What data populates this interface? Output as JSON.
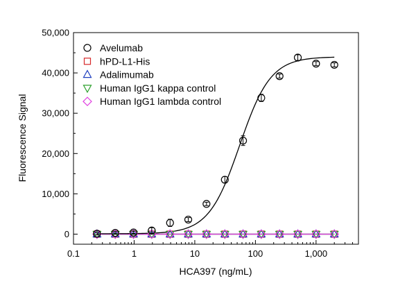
{
  "chart_data": {
    "type": "scatter",
    "title": "",
    "xlabel": "HCA397 (ng/mL)",
    "ylabel": "Fluorescence Signal",
    "x_scale": "log",
    "xlim": [
      0.1,
      5000
    ],
    "ylim": [
      -2500,
      50000
    ],
    "x_ticks": [
      0.1,
      1,
      10,
      100,
      1000
    ],
    "x_tick_labels": [
      "0.1",
      "1",
      "10",
      "100",
      "1,000"
    ],
    "y_ticks": [
      0,
      10000,
      20000,
      30000,
      40000,
      50000
    ],
    "y_tick_labels": [
      "0",
      "10,000",
      "20,000",
      "30,000",
      "40,000",
      "50,000"
    ],
    "grid": false,
    "legend_position": "top-left",
    "series": [
      {
        "name": "Avelumab",
        "marker": "circle",
        "color": "#000000",
        "x": [
          0.244,
          0.488,
          0.977,
          1.95,
          3.91,
          7.81,
          15.6,
          31.3,
          62.5,
          125,
          250,
          500,
          1000,
          2000
        ],
        "y": [
          100,
          300,
          400,
          900,
          2800,
          3600,
          7500,
          13500,
          23200,
          33800,
          39200,
          43800,
          42300,
          42000
        ],
        "err": [
          300,
          300,
          400,
          700,
          900,
          500,
          400,
          800,
          1200,
          900,
          500,
          700,
          500,
          500
        ],
        "fit": "4PL",
        "fit_params": {
          "bottom": 100,
          "top": 44000,
          "ec50": 55,
          "hill": 1.7
        }
      },
      {
        "name": "hPD-L1-His",
        "marker": "square",
        "color": "#d62728",
        "x": [
          0.244,
          0.488,
          0.977,
          1.95,
          3.91,
          7.81,
          15.6,
          31.3,
          62.5,
          125,
          250,
          500,
          1000,
          2000
        ],
        "y": [
          0,
          0,
          0,
          0,
          0,
          0,
          0,
          0,
          0,
          0,
          0,
          0,
          0,
          0
        ]
      },
      {
        "name": "Adalimumab",
        "marker": "triangle-up",
        "color": "#1f3fbf",
        "x": [
          0.244,
          0.488,
          0.977,
          1.95,
          3.91,
          7.81,
          15.6,
          31.3,
          62.5,
          125,
          250,
          500,
          1000,
          2000
        ],
        "y": [
          0,
          0,
          0,
          0,
          0,
          0,
          0,
          0,
          0,
          0,
          0,
          0,
          0,
          0
        ]
      },
      {
        "name": "Human IgG1 kappa control",
        "marker": "triangle-down",
        "color": "#2ca02c",
        "x": [
          0.244,
          0.488,
          0.977,
          1.95,
          3.91,
          7.81,
          15.6,
          31.3,
          62.5,
          125,
          250,
          500,
          1000,
          2000
        ],
        "y": [
          0,
          0,
          0,
          0,
          0,
          0,
          0,
          0,
          0,
          0,
          0,
          0,
          0,
          0
        ]
      },
      {
        "name": "Human IgG1 lambda control",
        "marker": "diamond",
        "color": "#e040e0",
        "x": [
          0.244,
          0.488,
          0.977,
          1.95,
          3.91,
          7.81,
          15.6,
          31.3,
          62.5,
          125,
          250,
          500,
          1000,
          2000
        ],
        "y": [
          0,
          0,
          0,
          0,
          0,
          0,
          0,
          0,
          0,
          0,
          0,
          0,
          0,
          0
        ]
      }
    ]
  }
}
